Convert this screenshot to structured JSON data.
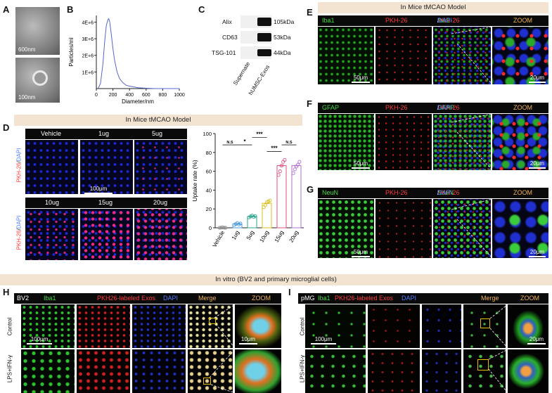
{
  "panels": {
    "A": {
      "label": "A",
      "scale_top": "600nm",
      "scale_bottom": "100nm"
    },
    "B": {
      "label": "B"
    },
    "C": {
      "label": "C",
      "rows": [
        "Alix",
        "CD63",
        "TSG-101"
      ],
      "sizes": [
        "105kDa",
        "53kDa",
        "44kDa"
      ],
      "lanes": [
        "Supernate",
        "hUMSC-Exos"
      ]
    },
    "D": {
      "label": "D",
      "banner": "In Mice tMCAO Model",
      "top_labels": [
        "Vehicle",
        "1ug",
        "5ug"
      ],
      "bottom_labels": [
        "10ug",
        "15ug",
        "20ug"
      ],
      "row_label_red": "PKH-26",
      "row_label_slash": "/",
      "row_label_blue": "DAPI",
      "scale": "100μm"
    },
    "E": {
      "label": "E",
      "banner": "In Mice tMCAO Model",
      "c1": "Iba1",
      "c2": "PKH-26",
      "m1": "Iba1",
      "m2": "PKH-26",
      "m3": "DAPI",
      "zoom": "ZOOM",
      "scale1": "50μm",
      "scale2": "20μm"
    },
    "F": {
      "label": "F",
      "c1": "GFAP",
      "c2": "PKH-26",
      "m1": "GFAP",
      "m2": "PKH-26",
      "m3": "DAPI",
      "zoom": "ZOOM",
      "scale1": "50μm",
      "scale2": "20μm"
    },
    "G": {
      "label": "G",
      "c1": "NeuN",
      "c2": "PKH-26",
      "m1": "NeuN",
      "m2": "PKH-26",
      "m3": "DAPI",
      "zoom": "ZOOM",
      "scale1": "50μm",
      "scale2": "20μm"
    },
    "invitro": {
      "banner": "In vitro (BV2 and primary microglial cells)"
    },
    "H": {
      "label": "H",
      "cell": "BV2",
      "c1": "Iba1",
      "c2": "PKH26-labeled Exos",
      "c3": "DAPI",
      "c4": "Merge",
      "c5": "ZOOM",
      "row1": "Control",
      "row2": "LPS+IFN-γ",
      "scale1": "100μm",
      "scale2": "10μm"
    },
    "I": {
      "label": "I",
      "cell": "pMG",
      "c1": "Iba1",
      "c2": "PKH26-labeled Exos",
      "c3": "DAPI",
      "c4": "Merge",
      "c5": "ZOOM",
      "row1": "Control",
      "row2": "LPS+IFN-γ",
      "scale1": "100μm",
      "scale2": "20μm"
    }
  },
  "colors": {
    "green": "#3ddc3d",
    "red": "#ff3d3d",
    "blue": "#4f7dff",
    "orange": "#f2b450",
    "banner": "#f3e4d2"
  },
  "chart_data": [
    {
      "type": "line",
      "panel": "B",
      "ylabel": "Particles/ml",
      "xlabel": "Diameter/nm",
      "xlim": [
        0,
        1000
      ],
      "ylim": [
        0,
        4400000.0
      ],
      "xticks": [
        "0",
        "200",
        "400",
        "600",
        "800",
        "1000"
      ],
      "yticks": [
        "1E+6",
        "2E+6",
        "3E+6",
        "4E+6"
      ],
      "ytick_values": [
        1000000.0,
        2000000.0,
        3000000.0,
        4000000.0
      ],
      "x": [
        20,
        50,
        80,
        100,
        120,
        140,
        150,
        160,
        180,
        200,
        220,
        250,
        280,
        320,
        360,
        400,
        450,
        500,
        600,
        700,
        800,
        900,
        1000
      ],
      "y": [
        0,
        300000,
        1500000,
        2800000,
        3800000,
        4150000,
        4200000,
        4050000,
        3300000,
        2400000,
        1700000,
        1000000,
        600000,
        350000,
        200000,
        150000,
        100000,
        50000,
        20000,
        0,
        0,
        0,
        0
      ],
      "color": "#5566cc"
    },
    {
      "type": "bar",
      "panel": "D",
      "ylabel": "Uptake rate (%)",
      "categories": [
        "Vehicle",
        "1ug",
        "5ug",
        "10ug",
        "15ug",
        "20ug"
      ],
      "values": [
        0,
        4,
        12,
        26,
        66,
        66
      ],
      "points": [
        [
          0,
          0,
          0.5,
          0,
          0
        ],
        [
          3,
          4,
          5,
          3.5,
          4.5
        ],
        [
          11,
          12,
          13,
          11.5,
          12.5
        ],
        [
          22,
          24,
          27,
          28,
          29
        ],
        [
          56,
          60,
          66,
          70,
          72
        ],
        [
          58,
          62,
          65,
          67,
          70
        ]
      ],
      "colors": [
        "#888888",
        "#4a9be0",
        "#2aa58a",
        "#d8c020",
        "#e05080",
        "#b070d0"
      ],
      "ylim": [
        0,
        100
      ],
      "yticks": [
        "0",
        "20",
        "40",
        "60",
        "80",
        "100"
      ],
      "ytick_values": [
        0,
        20,
        40,
        60,
        80,
        100
      ],
      "significance": [
        {
          "from": 0,
          "to": 1,
          "label": "N.S",
          "level": 88
        },
        {
          "from": 1,
          "to": 2,
          "label": "*",
          "level": 88
        },
        {
          "from": 2,
          "to": 3,
          "label": "***",
          "level": 96
        },
        {
          "from": 3,
          "to": 4,
          "label": "***",
          "level": 81
        },
        {
          "from": 4,
          "to": 5,
          "label": "N.S",
          "level": 88
        }
      ]
    }
  ]
}
